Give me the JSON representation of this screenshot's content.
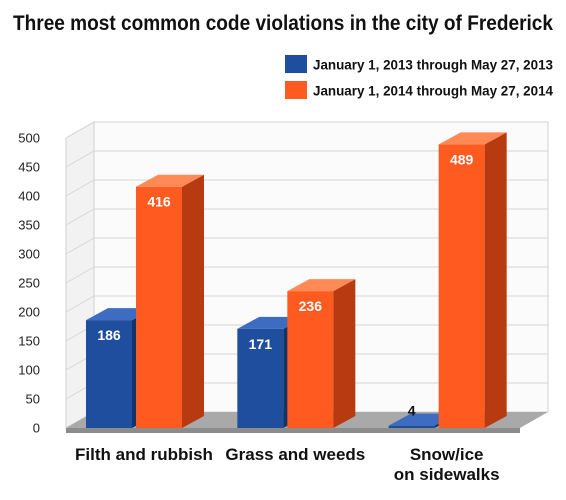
{
  "colors": {
    "series_2013": "#1f4e9e",
    "series_2014": "#ff5a1f"
  },
  "chart_data": {
    "type": "bar",
    "title": "Three most common code violations in the city of Frederick",
    "xlabel": "",
    "ylabel": "",
    "ylim": [
      0,
      500
    ],
    "yticks": [
      "0",
      "50",
      "100",
      "150",
      "200",
      "250",
      "300",
      "350",
      "400",
      "450",
      "500"
    ],
    "grid": true,
    "legend_position": "top-right",
    "categories": [
      [
        "Filth and rubbish"
      ],
      [
        "Grass and weeds"
      ],
      [
        "Snow/ice",
        "on sidewalks"
      ]
    ],
    "series": [
      {
        "name": "January 1, 2013 through May 27, 2013",
        "values": [
          186,
          171,
          4
        ]
      },
      {
        "name": "January 1, 2014 through May 27, 2014",
        "values": [
          416,
          236,
          489
        ]
      }
    ],
    "data_labels": [
      [
        "186",
        "171",
        "4"
      ],
      [
        "416",
        "236",
        "489"
      ]
    ]
  }
}
